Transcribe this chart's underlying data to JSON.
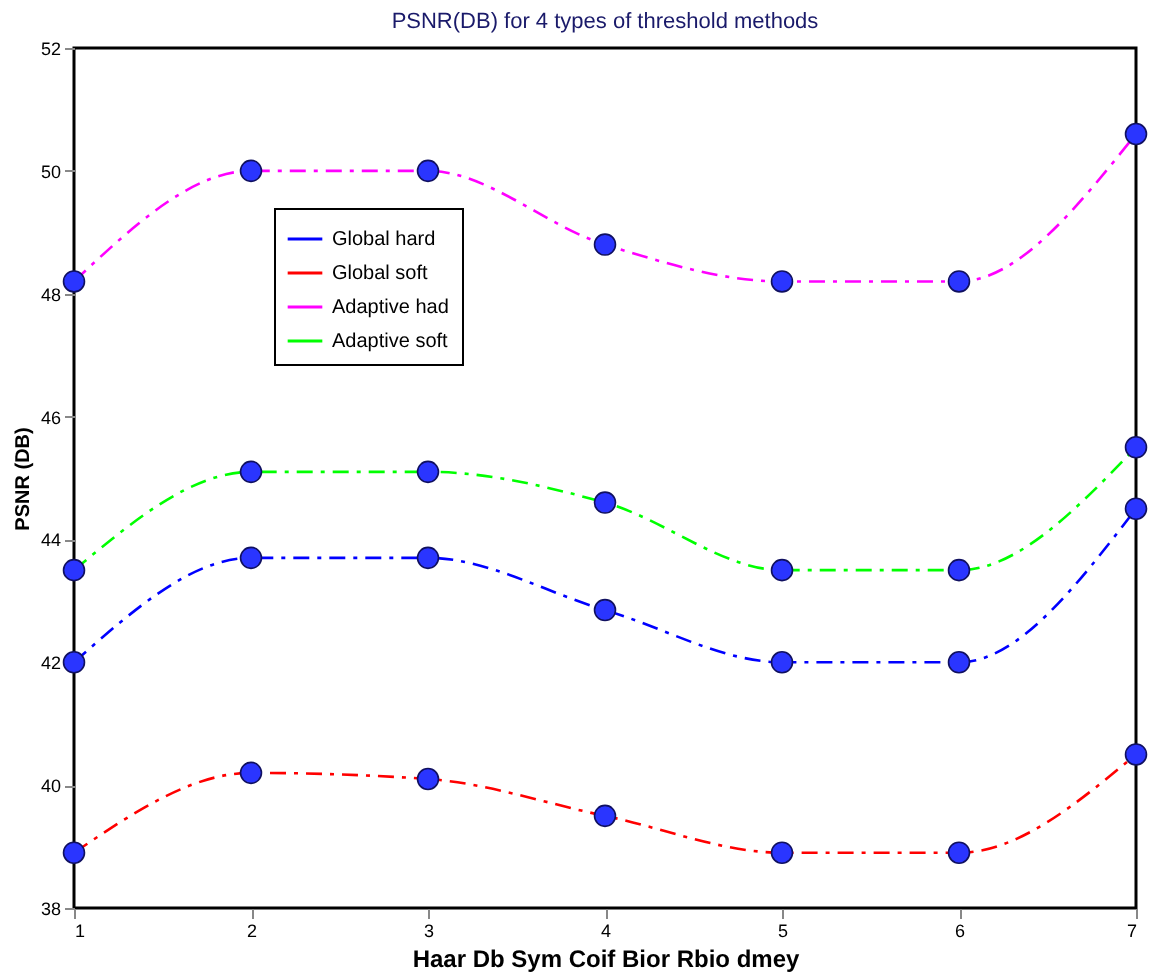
{
  "chart_data": {
    "type": "line",
    "title": "PSNR(DB) for 4 types of threshold methods",
    "xlabel": "Haar   Db   Sym   Coif   Bior   Rbio   dmey",
    "ylabel": "PSNR (DB)",
    "x": [
      1,
      2,
      3,
      4,
      5,
      6,
      7
    ],
    "xlim": [
      1,
      7
    ],
    "xticks": [
      1,
      2,
      3,
      4,
      5,
      6,
      7
    ],
    "ylim": [
      38,
      52
    ],
    "yticks": [
      38,
      40,
      42,
      44,
      46,
      48,
      50,
      52
    ],
    "grid": false,
    "legend": "top left",
    "marker": "circle",
    "line_style": "dashed",
    "series": [
      {
        "name": "Global hard",
        "color": "#0000ff",
        "values": [
          42.0,
          43.7,
          43.7,
          42.85,
          42.0,
          42.0,
          44.5
        ]
      },
      {
        "name": "Global soft",
        "color": "#ff0000",
        "values": [
          38.9,
          40.2,
          40.1,
          39.5,
          38.9,
          38.9,
          40.5
        ]
      },
      {
        "name": "Adaptive had",
        "color": "#ff00ff",
        "values": [
          48.2,
          50.0,
          50.0,
          48.8,
          48.2,
          48.2,
          50.6
        ]
      },
      {
        "name": "Adaptive soft",
        "color": "#00ff00",
        "values": [
          43.5,
          45.1,
          45.1,
          44.6,
          43.5,
          43.5,
          45.5
        ]
      }
    ]
  }
}
